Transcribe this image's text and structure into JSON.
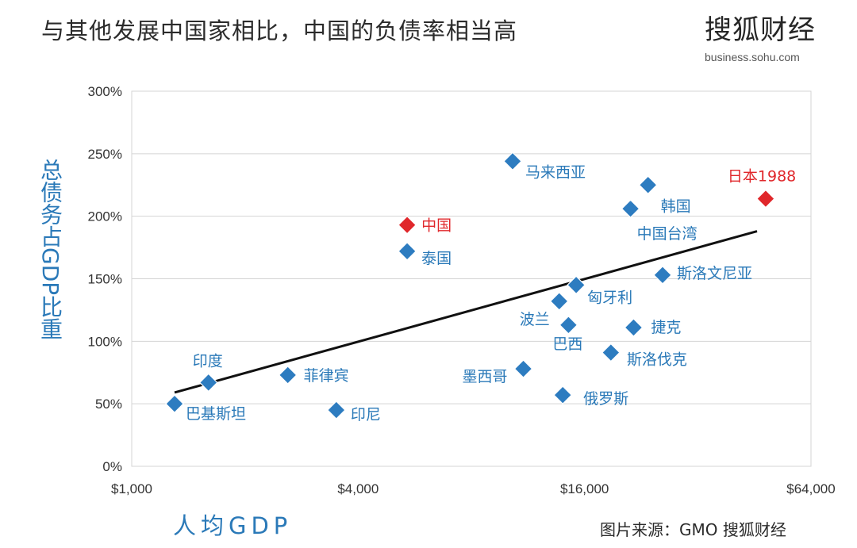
{
  "header": {
    "title": "与其他发展中国家相比，中国的负债率相当高",
    "brand": "搜狐财经",
    "brand_url": "business.sohu.com"
  },
  "footer": {
    "source": "图片来源：GMO  搜狐财经"
  },
  "colors": {
    "point": "#2d7cc0",
    "highlight": "#e0272b",
    "label": "#2a79b8",
    "trendline": "#111111",
    "grid": "#d4d4d4"
  },
  "chart_data": {
    "type": "scatter",
    "title": "与其他发展中国家相比，中国的负债率相当高",
    "xlabel": "人均GDP",
    "ylabel": "总债务占GDP比重",
    "x_scale": "log2",
    "xlim": [
      1000,
      64000
    ],
    "ylim": [
      0,
      300
    ],
    "x_ticks": [
      1000,
      4000,
      16000,
      64000
    ],
    "x_tick_labels": [
      "$1,000",
      "$4,000",
      "$16,000",
      "$64,000"
    ],
    "y_ticks": [
      0,
      50,
      100,
      150,
      200,
      250,
      300
    ],
    "y_tick_labels": [
      "0%",
      "50%",
      "100%",
      "150%",
      "200%",
      "250%",
      "300%"
    ],
    "grid": "horizontal",
    "points": [
      {
        "label": "巴基斯坦",
        "x": 1300,
        "y": 50,
        "highlight": false
      },
      {
        "label": "印度",
        "x": 1600,
        "y": 67,
        "highlight": false
      },
      {
        "label": "菲律宾",
        "x": 2600,
        "y": 73,
        "highlight": false
      },
      {
        "label": "印尼",
        "x": 3500,
        "y": 45,
        "highlight": false
      },
      {
        "label": "中国",
        "x": 5400,
        "y": 193,
        "highlight": true
      },
      {
        "label": "泰国",
        "x": 5400,
        "y": 172,
        "highlight": false
      },
      {
        "label": "马来西亚",
        "x": 10300,
        "y": 244,
        "highlight": false
      },
      {
        "label": "墨西哥",
        "x": 11000,
        "y": 78,
        "highlight": false
      },
      {
        "label": "波兰",
        "x": 13700,
        "y": 132,
        "highlight": false
      },
      {
        "label": "俄罗斯",
        "x": 14000,
        "y": 57,
        "highlight": false
      },
      {
        "label": "巴西",
        "x": 14500,
        "y": 113,
        "highlight": false
      },
      {
        "label": "匈牙利",
        "x": 15200,
        "y": 145,
        "highlight": false
      },
      {
        "label": "斯洛伐克",
        "x": 18800,
        "y": 91,
        "highlight": false
      },
      {
        "label": "中国台湾",
        "x": 21200,
        "y": 206,
        "highlight": false
      },
      {
        "label": "捷克",
        "x": 21600,
        "y": 111,
        "highlight": false
      },
      {
        "label": "韩国",
        "x": 23600,
        "y": 225,
        "highlight": false
      },
      {
        "label": "斯洛文尼亚",
        "x": 25800,
        "y": 153,
        "highlight": false
      },
      {
        "label": "日本1988",
        "x": 48500,
        "y": 214,
        "highlight": true
      }
    ],
    "trendline": {
      "x": [
        1300,
        46000
      ],
      "y": [
        59,
        188
      ]
    }
  }
}
